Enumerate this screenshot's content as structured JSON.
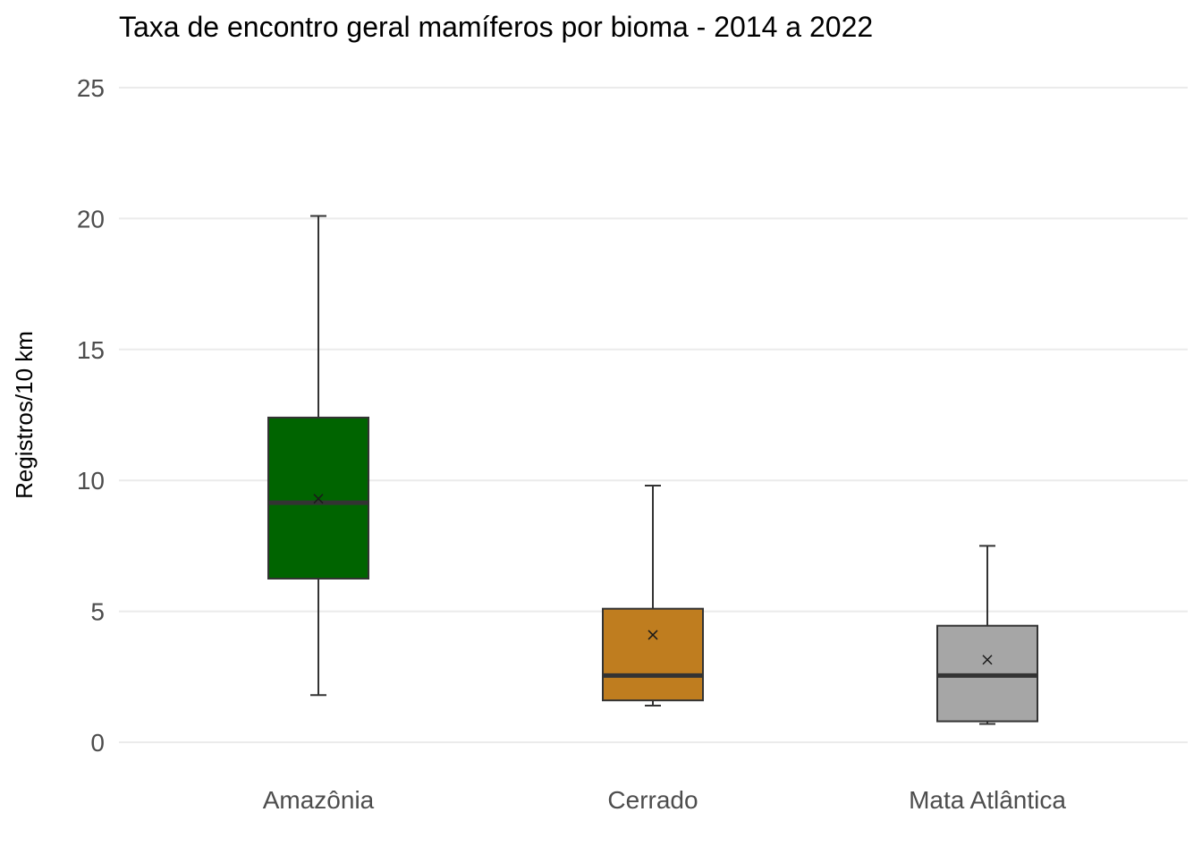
{
  "chart_data": {
    "type": "boxplot",
    "title": "Taxa de encontro geral mamíferos por bioma - 2014 a 2022",
    "xlabel": "",
    "ylabel": "Registros/10 km",
    "ylim": [
      0,
      25
    ],
    "yticks": [
      0,
      5,
      10,
      15,
      20,
      25
    ],
    "grid": true,
    "legend": "none",
    "categories": [
      "Amazônia",
      "Cerrado",
      "Mata Atlântica"
    ],
    "series": [
      {
        "category": "Amazônia",
        "min": 1.8,
        "q1": 6.25,
        "median": 9.15,
        "q3": 12.4,
        "max": 20.1,
        "mean": 9.3,
        "color": "#006400"
      },
      {
        "category": "Cerrado",
        "min": 1.4,
        "q1": 1.6,
        "median": 2.55,
        "q3": 5.1,
        "max": 9.8,
        "mean": 4.1,
        "color": "#BF7D1F"
      },
      {
        "category": "Mata Atlântica",
        "min": 0.7,
        "q1": 0.8,
        "median": 2.55,
        "q3": 4.45,
        "max": 7.5,
        "mean": 3.15,
        "color": "#A6A6A6"
      }
    ]
  }
}
